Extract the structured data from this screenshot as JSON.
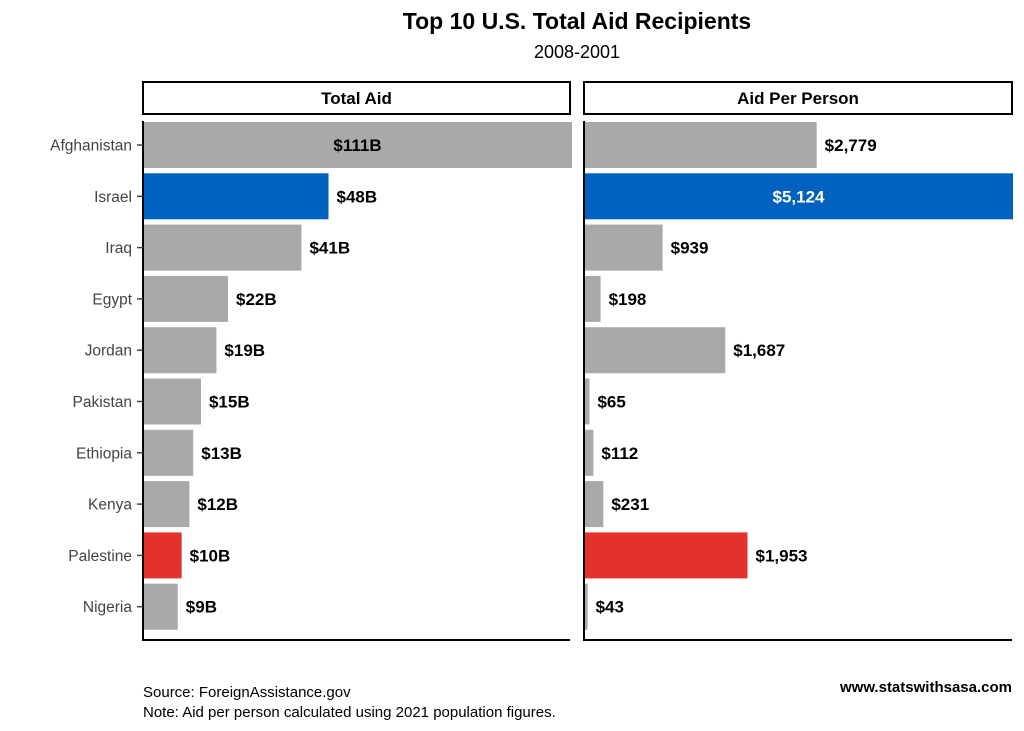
{
  "title": "Top 10 U.S. Total Aid Recipients",
  "subtitle": "2008-2001",
  "source": "Source: ForeignAssistance.gov",
  "note": "Note: Aid per person calculated using 2021 population figures.",
  "brand": "www.statswithsasa.com",
  "colors": {
    "default": "#a9a9a9",
    "israel": "#0062be",
    "palestine": "#e3312d"
  },
  "chart_data": [
    {
      "type": "bar",
      "orientation": "horizontal",
      "panel": "Total Aid",
      "categories": [
        "Afghanistan",
        "Israel",
        "Iraq",
        "Egypt",
        "Jordan",
        "Pakistan",
        "Ethiopia",
        "Kenya",
        "Palestine",
        "Nigeria"
      ],
      "values": [
        111,
        48,
        41,
        22,
        19,
        15,
        13,
        12,
        10,
        9
      ],
      "labels": [
        "$111B",
        "$48B",
        "$41B",
        "$22B",
        "$19B",
        "$15B",
        "$13B",
        "$12B",
        "$10B",
        "$9B"
      ],
      "xlim": [
        0,
        111
      ],
      "grid": false
    },
    {
      "type": "bar",
      "orientation": "horizontal",
      "panel": "Aid Per Person",
      "categories": [
        "Afghanistan",
        "Israel",
        "Iraq",
        "Egypt",
        "Jordan",
        "Pakistan",
        "Ethiopia",
        "Kenya",
        "Palestine",
        "Nigeria"
      ],
      "values": [
        2779,
        5124,
        939,
        198,
        1687,
        65,
        112,
        231,
        1953,
        43
      ],
      "labels": [
        "$2,779",
        "$5,124",
        "$939",
        "$198",
        "$1,687",
        "$65",
        "$112",
        "$231",
        "$1,953",
        "$43"
      ],
      "xlim": [
        0,
        5124
      ],
      "grid": false
    }
  ]
}
